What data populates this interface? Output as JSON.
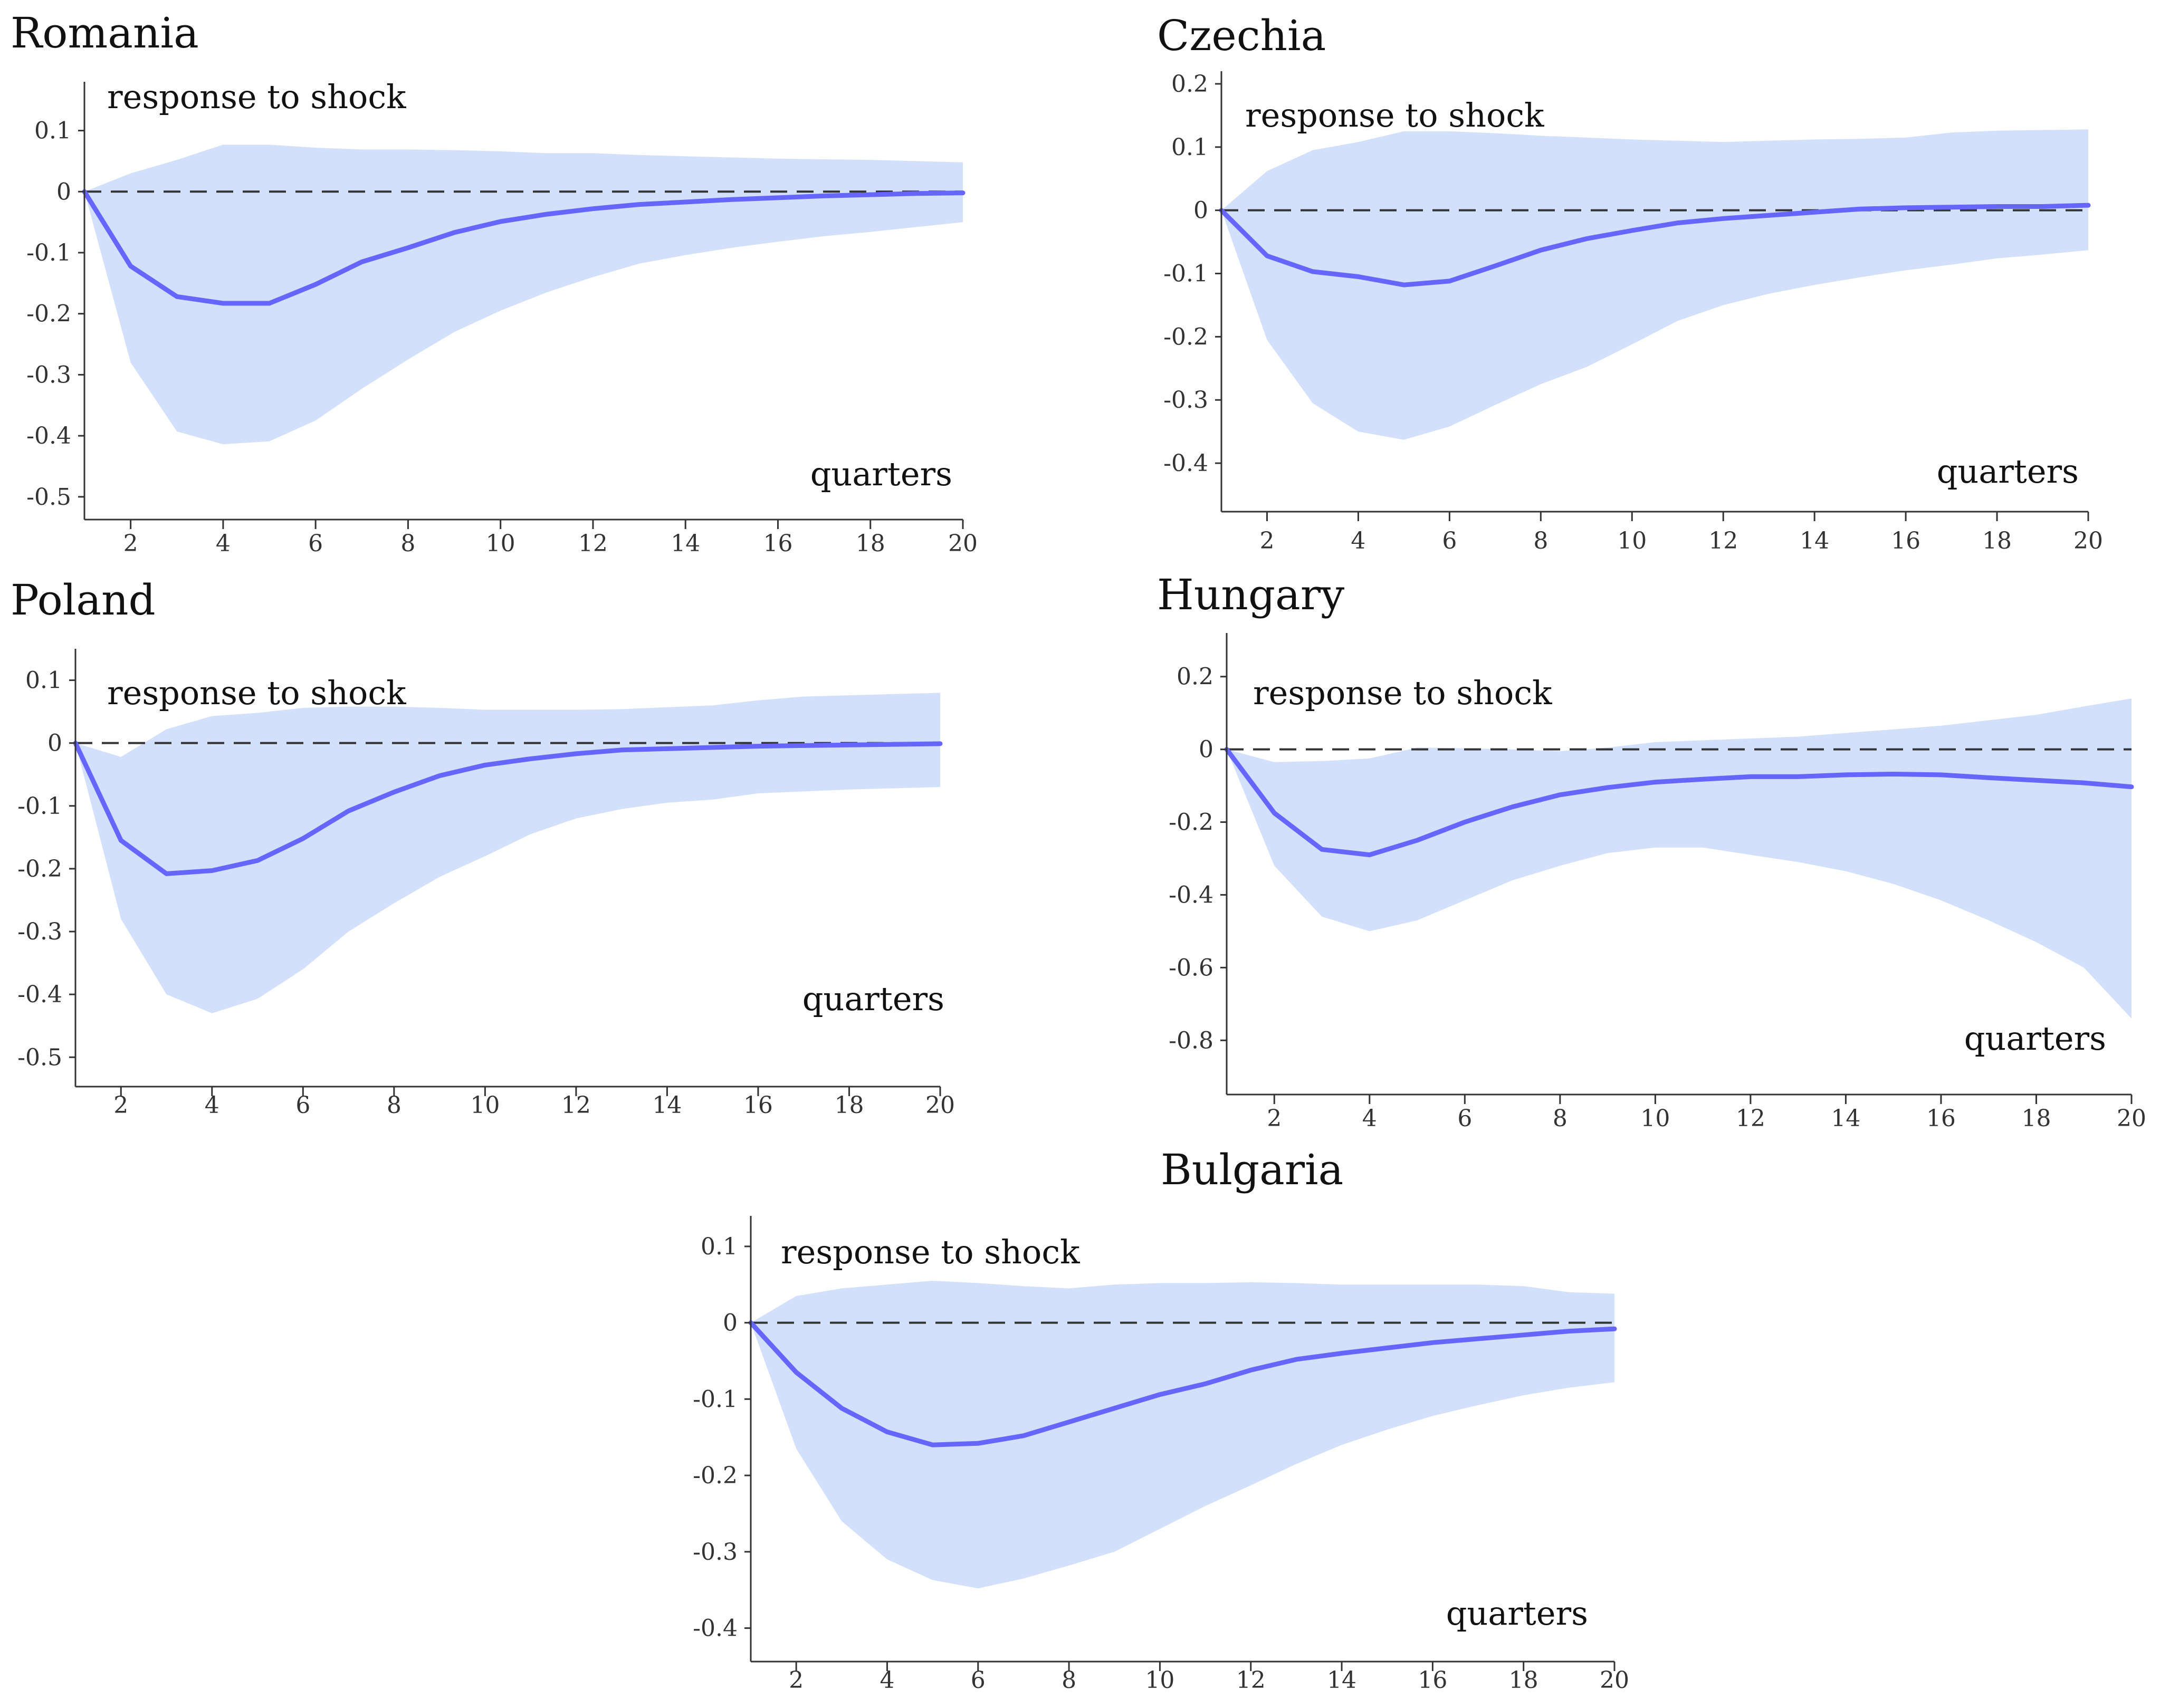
{
  "colors": {
    "response": "#6666ff",
    "band": "#d3e0fb",
    "zero_line": "#333333",
    "axis": "#333333"
  },
  "chart_data": [
    {
      "type": "line",
      "title": "Romania",
      "annotation_series": "response to shock",
      "xlabel": "quarters",
      "x": [
        1,
        2,
        3,
        4,
        5,
        6,
        7,
        8,
        9,
        10,
        11,
        12,
        13,
        14,
        15,
        16,
        17,
        18,
        19,
        20
      ],
      "xticks": [
        2,
        4,
        6,
        8,
        10,
        12,
        14,
        16,
        18,
        20
      ],
      "xticklabels": [
        "2",
        "4",
        "6",
        "8",
        "10",
        "12",
        "14",
        "16",
        "18",
        "20"
      ],
      "xlim": [
        1,
        20
      ],
      "yticks": [
        0.1,
        0,
        -0.1,
        -0.2,
        -0.3,
        -0.4,
        -0.5
      ],
      "yticklabels": [
        "0.1",
        "0",
        "-0.1",
        "-0.2",
        "-0.3",
        "-0.4",
        "-0.5"
      ],
      "ylim": [
        -0.52,
        0.18
      ],
      "series": [
        {
          "name": "response to shock",
          "values": [
            0,
            -0.122,
            -0.172,
            -0.183,
            -0.183,
            -0.152,
            -0.115,
            -0.092,
            -0.067,
            -0.049,
            -0.037,
            -0.028,
            -0.021,
            -0.017,
            -0.013,
            -0.01,
            -0.007,
            -0.005,
            -0.003,
            -0.002
          ]
        }
      ],
      "band": {
        "upper": [
          0,
          0.03,
          0.052,
          0.077,
          0.077,
          0.072,
          0.069,
          0.069,
          0.068,
          0.066,
          0.063,
          0.063,
          0.06,
          0.058,
          0.056,
          0.054,
          0.053,
          0.052,
          0.05,
          0.048
        ],
        "lower": [
          0,
          -0.28,
          -0.393,
          -0.414,
          -0.409,
          -0.375,
          -0.323,
          -0.275,
          -0.23,
          -0.195,
          -0.165,
          -0.14,
          -0.118,
          -0.104,
          -0.092,
          -0.082,
          -0.073,
          -0.066,
          -0.058,
          -0.05
        ]
      }
    },
    {
      "type": "line",
      "title": "Czechia",
      "annotation_series": "response to shock",
      "xlabel": "quarters",
      "x": [
        1,
        2,
        3,
        4,
        5,
        6,
        7,
        8,
        9,
        10,
        11,
        12,
        13,
        14,
        15,
        16,
        17,
        18,
        19,
        20
      ],
      "xticks": [
        2,
        4,
        6,
        8,
        10,
        12,
        14,
        16,
        18,
        20
      ],
      "xticklabels": [
        "2",
        "4",
        "6",
        "8",
        "10",
        "12",
        "14",
        "16",
        "18",
        "20"
      ],
      "xlim": [
        1,
        20
      ],
      "yticks": [
        0.2,
        0.1,
        0,
        -0.1,
        -0.2,
        -0.3,
        -0.4
      ],
      "yticklabels": [
        "0.2",
        "0.1",
        "0",
        "-0.1",
        "-0.2",
        "-0.3",
        "-0.4"
      ],
      "ylim": [
        -0.46,
        0.22
      ],
      "series": [
        {
          "name": "response to shock",
          "values": [
            0,
            -0.072,
            -0.097,
            -0.105,
            -0.118,
            -0.112,
            -0.088,
            -0.063,
            -0.045,
            -0.032,
            -0.02,
            -0.013,
            -0.008,
            -0.003,
            0.002,
            0.004,
            0.005,
            0.006,
            0.006,
            0.008
          ]
        }
      ],
      "band": {
        "upper": [
          0,
          0.062,
          0.095,
          0.108,
          0.125,
          0.125,
          0.122,
          0.118,
          0.115,
          0.112,
          0.11,
          0.108,
          0.11,
          0.112,
          0.113,
          0.115,
          0.123,
          0.126,
          0.127,
          0.128
        ],
        "lower": [
          0,
          -0.205,
          -0.305,
          -0.35,
          -0.363,
          -0.342,
          -0.308,
          -0.275,
          -0.248,
          -0.212,
          -0.175,
          -0.15,
          -0.132,
          -0.118,
          -0.106,
          -0.095,
          -0.086,
          -0.076,
          -0.07,
          -0.063
        ]
      }
    },
    {
      "type": "line",
      "title": "Poland",
      "annotation_series": "response to shock",
      "xlabel": "quarters",
      "x": [
        1,
        2,
        3,
        4,
        5,
        6,
        7,
        8,
        9,
        10,
        11,
        12,
        13,
        14,
        15,
        16,
        17,
        18,
        19,
        20
      ],
      "xticks": [
        2,
        4,
        6,
        8,
        10,
        12,
        14,
        16,
        18,
        20
      ],
      "xticklabels": [
        "2",
        "4",
        "6",
        "8",
        "10",
        "12",
        "14",
        "16",
        "18",
        "20"
      ],
      "xlim": [
        1,
        20
      ],
      "yticks": [
        0.1,
        0,
        -0.1,
        -0.2,
        -0.3,
        -0.4,
        -0.5
      ],
      "yticklabels": [
        "0.1",
        "0",
        "-0.1",
        "-0.2",
        "-0.3",
        "-0.4",
        "-0.5"
      ],
      "ylim": [
        -0.53,
        0.15
      ],
      "series": [
        {
          "name": "response to shock",
          "values": [
            0,
            -0.155,
            -0.208,
            -0.203,
            -0.187,
            -0.152,
            -0.108,
            -0.078,
            -0.052,
            -0.035,
            -0.025,
            -0.017,
            -0.011,
            -0.009,
            -0.007,
            -0.005,
            -0.004,
            -0.003,
            -0.002,
            -0.001
          ]
        }
      ],
      "band": {
        "upper": [
          0,
          -0.022,
          0.022,
          0.043,
          0.048,
          0.056,
          0.058,
          0.058,
          0.056,
          0.053,
          0.053,
          0.053,
          0.054,
          0.057,
          0.06,
          0.068,
          0.074,
          0.076,
          0.078,
          0.08
        ],
        "lower": [
          0,
          -0.28,
          -0.4,
          -0.43,
          -0.407,
          -0.36,
          -0.3,
          -0.255,
          -0.213,
          -0.18,
          -0.145,
          -0.12,
          -0.105,
          -0.095,
          -0.09,
          -0.08,
          -0.077,
          -0.074,
          -0.072,
          -0.07
        ]
      }
    },
    {
      "type": "line",
      "title": "Hungary",
      "annotation_series": "response to shock",
      "xlabel": "quarters",
      "x": [
        1,
        2,
        3,
        4,
        5,
        6,
        7,
        8,
        9,
        10,
        11,
        12,
        13,
        14,
        15,
        16,
        17,
        18,
        19,
        20
      ],
      "xticks": [
        2,
        4,
        6,
        8,
        10,
        12,
        14,
        16,
        18,
        20
      ],
      "xticklabels": [
        "2",
        "4",
        "6",
        "8",
        "10",
        "12",
        "14",
        "16",
        "18",
        "20"
      ],
      "xlim": [
        1,
        20
      ],
      "yticks": [
        0.2,
        0,
        -0.2,
        -0.4,
        -0.6,
        -0.8
      ],
      "yticklabels": [
        "0.2",
        "0",
        "-0.2",
        "-0.4",
        "-0.6",
        "-0.8"
      ],
      "ylim": [
        -0.92,
        0.32
      ],
      "series": [
        {
          "name": "response to shock",
          "values": [
            0,
            -0.175,
            -0.275,
            -0.29,
            -0.25,
            -0.2,
            -0.158,
            -0.125,
            -0.105,
            -0.09,
            -0.082,
            -0.075,
            -0.075,
            -0.07,
            -0.068,
            -0.07,
            -0.078,
            -0.085,
            -0.092,
            -0.103
          ]
        }
      ],
      "band": {
        "upper": [
          0,
          -0.035,
          -0.032,
          -0.025,
          0.005,
          0.003,
          0.0,
          -0.005,
          0.005,
          0.02,
          0.025,
          0.03,
          0.035,
          0.045,
          0.055,
          0.065,
          0.08,
          0.095,
          0.118,
          0.14
        ],
        "lower": [
          0,
          -0.32,
          -0.46,
          -0.5,
          -0.47,
          -0.415,
          -0.36,
          -0.32,
          -0.285,
          -0.27,
          -0.27,
          -0.29,
          -0.31,
          -0.335,
          -0.37,
          -0.415,
          -0.47,
          -0.53,
          -0.6,
          -0.74
        ]
      }
    },
    {
      "type": "line",
      "title": "Bulgaria",
      "annotation_series": "response to shock",
      "xlabel": "quarters",
      "x": [
        1,
        2,
        3,
        4,
        5,
        6,
        7,
        8,
        9,
        10,
        11,
        12,
        13,
        14,
        15,
        16,
        17,
        18,
        19,
        20
      ],
      "xticks": [
        2,
        4,
        6,
        8,
        10,
        12,
        14,
        16,
        18,
        20
      ],
      "xticklabels": [
        "2",
        "4",
        "6",
        "8",
        "10",
        "12",
        "14",
        "16",
        "18",
        "20"
      ],
      "xlim": [
        1,
        20
      ],
      "yticks": [
        0.1,
        0,
        -0.1,
        -0.2,
        -0.3,
        -0.4
      ],
      "yticklabels": [
        "0.1",
        "0",
        "-0.1",
        "-0.2",
        "-0.3",
        "-0.4"
      ],
      "ylim": [
        -0.43,
        0.14
      ],
      "series": [
        {
          "name": "response to shock",
          "values": [
            0,
            -0.065,
            -0.112,
            -0.143,
            -0.16,
            -0.158,
            -0.148,
            -0.13,
            -0.112,
            -0.094,
            -0.08,
            -0.062,
            -0.048,
            -0.04,
            -0.033,
            -0.026,
            -0.021,
            -0.016,
            -0.011,
            -0.008
          ]
        }
      ],
      "band": {
        "upper": [
          0,
          0.035,
          0.045,
          0.05,
          0.055,
          0.052,
          0.048,
          0.045,
          0.05,
          0.052,
          0.052,
          0.053,
          0.052,
          0.05,
          0.05,
          0.05,
          0.05,
          0.048,
          0.04,
          0.038
        ],
        "lower": [
          0,
          -0.165,
          -0.26,
          -0.31,
          -0.337,
          -0.348,
          -0.335,
          -0.318,
          -0.3,
          -0.27,
          -0.24,
          -0.213,
          -0.185,
          -0.16,
          -0.14,
          -0.122,
          -0.108,
          -0.095,
          -0.085,
          -0.078
        ]
      }
    }
  ]
}
